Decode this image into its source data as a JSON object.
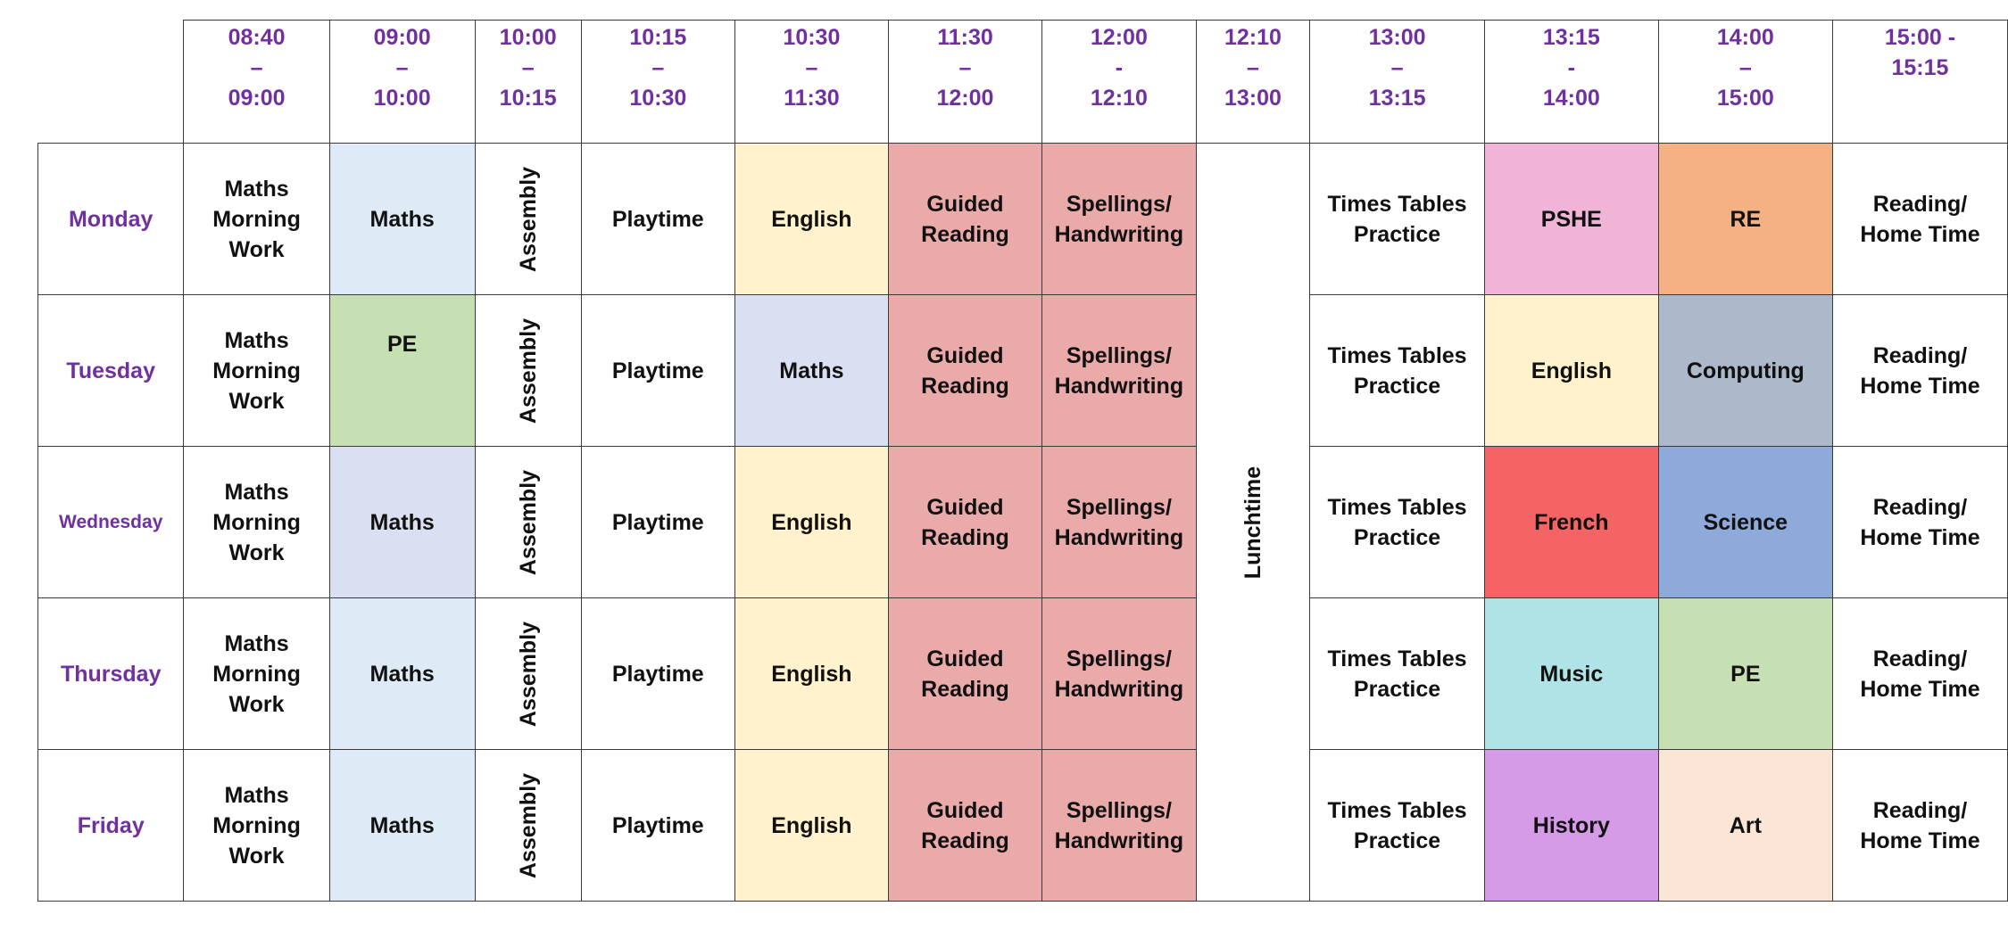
{
  "colors": {
    "day_text": "#7030a0",
    "time_text": "#7030a0",
    "maths_light_blue": "#deebf7",
    "maths_lavender": "#dae0f2",
    "pe_green": "#c6e0b4",
    "english_cream": "#fff2cc",
    "guided_reading_rose": "#eaaaaa",
    "pshe_pink": "#efb4d6",
    "re_orange": "#f4b183",
    "computing_grey": "#adb9ca",
    "french_red": "#f56464",
    "science_blue": "#8eaadb",
    "music_teal": "#afe3e6",
    "history_purple": "#d59be6",
    "art_peach": "#fbe5d6"
  },
  "header": {
    "times": [
      [
        "08:40",
        "–",
        "09:00"
      ],
      [
        "09:00",
        "–",
        "10:00"
      ],
      [
        "10:00",
        "–",
        "10:15"
      ],
      [
        "10:15",
        "–",
        "10:30"
      ],
      [
        "10:30",
        "–",
        "11:30"
      ],
      [
        "11:30",
        "–",
        "12:00"
      ],
      [
        "12:00",
        "-",
        "12:10"
      ],
      [
        "12:10",
        "–",
        "13:00"
      ],
      [
        "13:00",
        "–",
        "13:15"
      ],
      [
        "13:15",
        "-",
        "14:00"
      ],
      [
        "14:00",
        "–",
        "15:00"
      ],
      [
        "15:00 -",
        "15:15",
        ""
      ]
    ]
  },
  "lunch_label": "Lunchtime",
  "rows": [
    {
      "day": "Monday",
      "cells": [
        {
          "lines": [
            "Maths",
            "Morning",
            "Work"
          ]
        },
        {
          "lines": [
            "Maths"
          ],
          "color": "#deebf7"
        },
        {
          "lines": [
            "Assembly"
          ],
          "vertical": true
        },
        {
          "lines": [
            "Playtime"
          ]
        },
        {
          "lines": [
            "English"
          ],
          "color": "#fff2cc"
        },
        {
          "lines": [
            "Guided",
            "Reading"
          ],
          "color": "#eaaaaa"
        },
        {
          "lines": [
            "Spellings/",
            "Handwriting"
          ],
          "color": "#eaaaaa",
          "small": true
        },
        {
          "lines": [
            "Times Tables",
            "Practice"
          ]
        },
        {
          "lines": [
            "PSHE"
          ],
          "color": "#efb4d6"
        },
        {
          "lines": [
            "RE"
          ],
          "color": "#f4b183"
        },
        {
          "lines": [
            "Reading/",
            "Home Time"
          ]
        }
      ]
    },
    {
      "day": "Tuesday",
      "cells": [
        {
          "lines": [
            "Maths",
            "Morning",
            "Work"
          ]
        },
        {
          "lines": [
            "PE"
          ],
          "color": "#c6e0b4",
          "top": true
        },
        {
          "lines": [
            "Assembly"
          ],
          "vertical": true
        },
        {
          "lines": [
            "Playtime"
          ]
        },
        {
          "lines": [
            "Maths"
          ],
          "color": "#dae0f2"
        },
        {
          "lines": [
            "Guided",
            "Reading"
          ],
          "color": "#eaaaaa"
        },
        {
          "lines": [
            "Spellings/",
            "Handwriting"
          ],
          "color": "#eaaaaa",
          "small": true
        },
        {
          "lines": [
            "Times Tables",
            "Practice"
          ]
        },
        {
          "lines": [
            "English"
          ],
          "color": "#fff2cc"
        },
        {
          "lines": [
            "Computing"
          ],
          "color": "#adb9ca"
        },
        {
          "lines": [
            "Reading/",
            "Home Time"
          ]
        }
      ]
    },
    {
      "day": "Wednesday",
      "small_day": true,
      "cells": [
        {
          "lines": [
            "Maths",
            "Morning",
            "Work"
          ]
        },
        {
          "lines": [
            "Maths"
          ],
          "color": "#dae0f2"
        },
        {
          "lines": [
            "Assembly"
          ],
          "vertical": true
        },
        {
          "lines": [
            "Playtime"
          ]
        },
        {
          "lines": [
            "English"
          ],
          "color": "#fff2cc"
        },
        {
          "lines": [
            "Guided",
            "Reading"
          ],
          "color": "#eaaaaa"
        },
        {
          "lines": [
            "Spellings/",
            "Handwriting"
          ],
          "color": "#eaaaaa",
          "small": true
        },
        {
          "lines": [
            "Times Tables",
            "Practice"
          ]
        },
        {
          "lines": [
            "French"
          ],
          "color": "#f56464"
        },
        {
          "lines": [
            "Science"
          ],
          "color": "#8eaadb"
        },
        {
          "lines": [
            "Reading/",
            "Home Time"
          ]
        }
      ]
    },
    {
      "day": "Thursday",
      "cells": [
        {
          "lines": [
            "Maths",
            "Morning",
            "Work"
          ]
        },
        {
          "lines": [
            "Maths"
          ],
          "color": "#deebf7"
        },
        {
          "lines": [
            "Assembly"
          ],
          "vertical": true
        },
        {
          "lines": [
            "Playtime"
          ]
        },
        {
          "lines": [
            "English"
          ],
          "color": "#fff2cc"
        },
        {
          "lines": [
            "Guided",
            "Reading"
          ],
          "color": "#eaaaaa"
        },
        {
          "lines": [
            "Spellings/",
            "Handwriting"
          ],
          "color": "#eaaaaa",
          "small": true
        },
        {
          "lines": [
            "Times Tables",
            "Practice"
          ]
        },
        {
          "lines": [
            "Music"
          ],
          "color": "#afe3e6"
        },
        {
          "lines": [
            "PE"
          ],
          "color": "#c6e0b4"
        },
        {
          "lines": [
            "Reading/",
            "Home Time"
          ]
        }
      ]
    },
    {
      "day": "Friday",
      "cells": [
        {
          "lines": [
            "Maths",
            "Morning",
            "Work"
          ]
        },
        {
          "lines": [
            "Maths"
          ],
          "color": "#deebf7"
        },
        {
          "lines": [
            "Assembly"
          ],
          "vertical": true
        },
        {
          "lines": [
            "Playtime"
          ]
        },
        {
          "lines": [
            "English"
          ],
          "color": "#fff2cc"
        },
        {
          "lines": [
            "Guided",
            "Reading"
          ],
          "color": "#eaaaaa"
        },
        {
          "lines": [
            "Spellings/",
            "Handwriting"
          ],
          "color": "#eaaaaa",
          "small": true
        },
        {
          "lines": [
            "Times Tables",
            "Practice"
          ]
        },
        {
          "lines": [
            "History"
          ],
          "color": "#d59be6"
        },
        {
          "lines": [
            "Art"
          ],
          "color": "#fbe5d6"
        },
        {
          "lines": [
            "Reading/",
            "Home Time"
          ]
        }
      ]
    }
  ]
}
